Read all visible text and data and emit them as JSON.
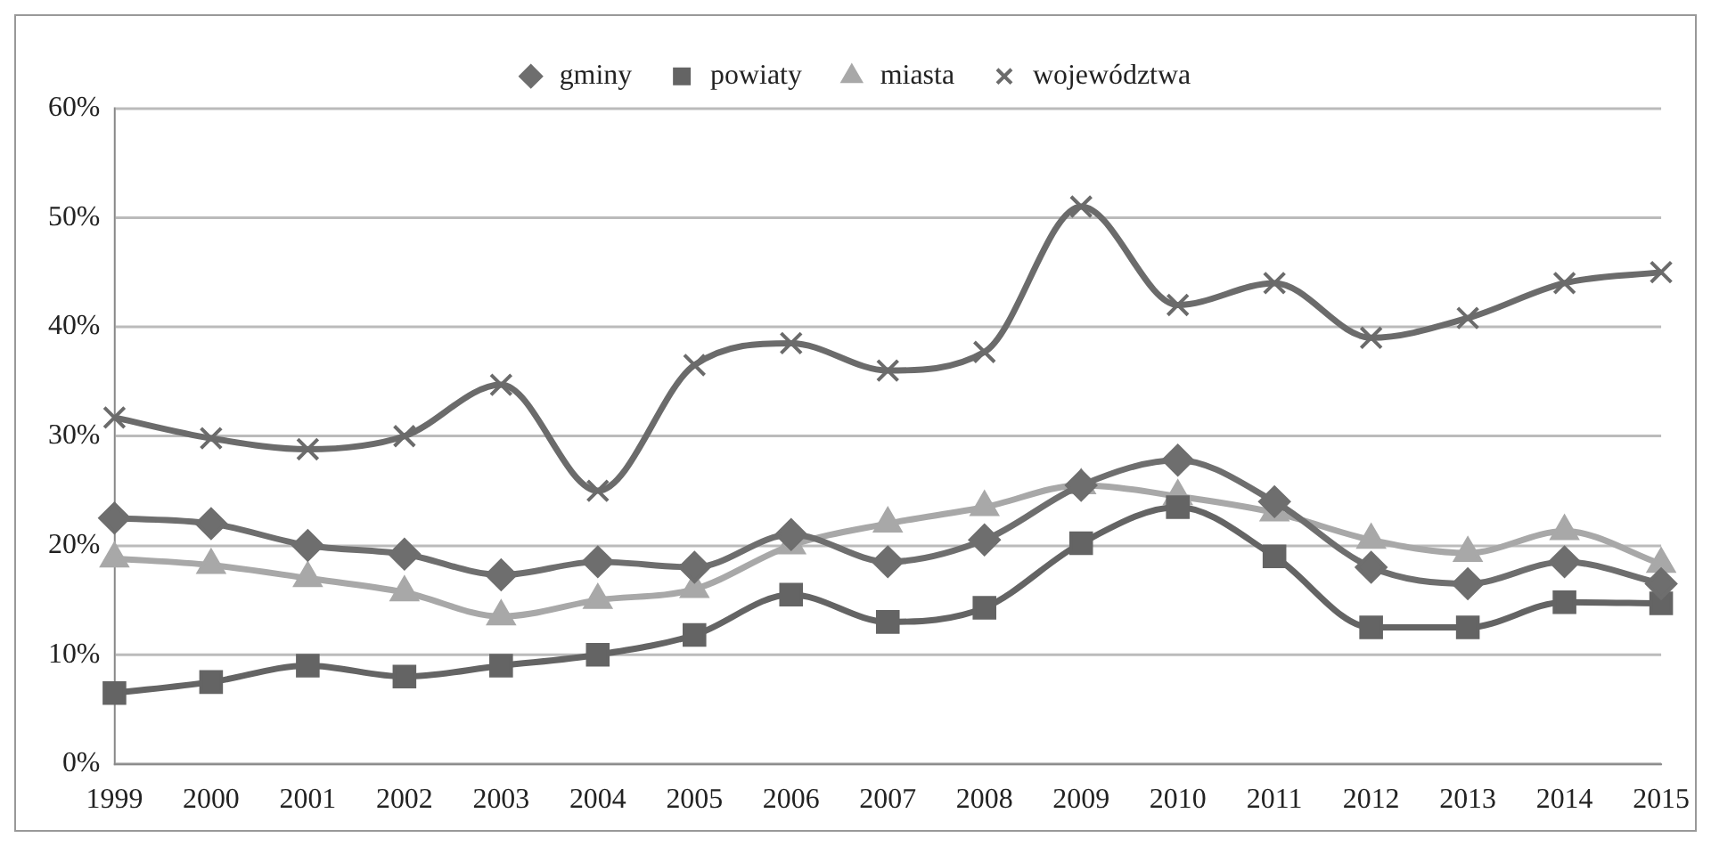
{
  "chart_data": {
    "type": "line",
    "categories": [
      "1999",
      "2000",
      "2001",
      "2002",
      "2003",
      "2004",
      "2005",
      "2006",
      "2007",
      "2008",
      "2009",
      "2010",
      "2011",
      "2012",
      "2013",
      "2014",
      "2015"
    ],
    "series": [
      {
        "name": "gminy",
        "color": "#6e6e6e",
        "marker": "diamond",
        "values": [
          22.5,
          22,
          20,
          19.2,
          17.3,
          18.5,
          18,
          21,
          18.5,
          20.5,
          25.5,
          27.8,
          24,
          18,
          16.5,
          18.5,
          16.5
        ]
      },
      {
        "name": "powiaty",
        "color": "#646464",
        "marker": "square",
        "values": [
          6.5,
          7.5,
          9,
          8,
          9,
          10,
          11.8,
          15.5,
          13,
          14.3,
          20.2,
          23.5,
          19,
          12.5,
          12.5,
          14.8,
          14.7
        ]
      },
      {
        "name": "miasta",
        "color": "#a8a8a8",
        "marker": "triangle",
        "values": [
          18.8,
          18.2,
          17,
          15.7,
          13.5,
          15,
          16,
          20,
          22,
          23.5,
          25.5,
          24.5,
          23,
          20.5,
          19.3,
          21.3,
          18.3
        ]
      },
      {
        "name": "województwa",
        "color": "#6b6b6b",
        "marker": "cross",
        "values": [
          31.7,
          29.8,
          28.8,
          30,
          34.7,
          25,
          36.5,
          38.5,
          36,
          37.7,
          51,
          42,
          44,
          39,
          40.8,
          44,
          45
        ]
      }
    ],
    "ylim": [
      0,
      60
    ],
    "yticks": [
      {
        "value": 0,
        "label": "0%"
      },
      {
        "value": 10,
        "label": "10%"
      },
      {
        "value": 20,
        "label": "20%"
      },
      {
        "value": 30,
        "label": "30%"
      },
      {
        "value": 40,
        "label": "40%"
      },
      {
        "value": 50,
        "label": "50%"
      },
      {
        "value": 60,
        "label": "60%"
      }
    ],
    "grid": "y",
    "legend": "top",
    "line_style": "solid"
  }
}
